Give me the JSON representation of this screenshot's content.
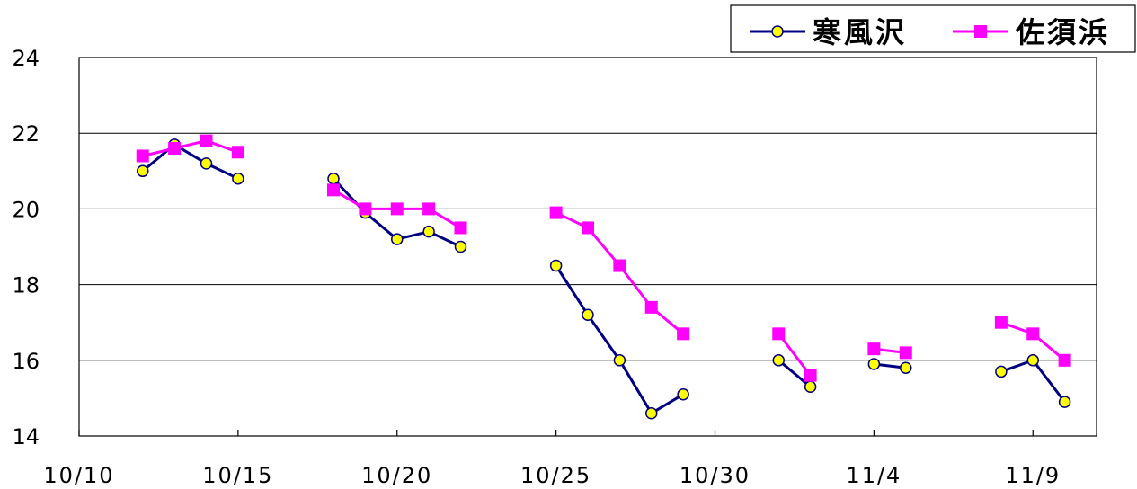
{
  "chart_data": {
    "type": "line",
    "title": "",
    "xlabel": "",
    "ylabel": "",
    "ylim": [
      14,
      24
    ],
    "yticks": [
      14,
      16,
      18,
      20,
      22,
      24
    ],
    "xlim": [
      "10/10",
      "11/11"
    ],
    "xticks": [
      {
        "date": "10/10",
        "label": "10/10"
      },
      {
        "date": "10/15",
        "label": "10/15"
      },
      {
        "date": "10/20",
        "label": "10/20"
      },
      {
        "date": "10/25",
        "label": "10/25"
      },
      {
        "date": "10/30",
        "label": "10/30"
      },
      {
        "date": "11/4",
        "label": "11/4"
      },
      {
        "date": "11/9",
        "label": "11/9"
      }
    ],
    "grid": "horizontal",
    "legend_position": "top-right",
    "series": [
      {
        "name": "寒風沢",
        "color": "#000080",
        "marker": "circle",
        "marker_fill": "#ffff00",
        "segments": [
          [
            [
              "10/12",
              21.0
            ],
            [
              "10/13",
              21.7
            ],
            [
              "10/14",
              21.2
            ],
            [
              "10/15",
              20.8
            ]
          ],
          [
            [
              "10/18",
              20.8
            ],
            [
              "10/19",
              19.9
            ],
            [
              "10/20",
              19.2
            ],
            [
              "10/21",
              19.4
            ],
            [
              "10/22",
              19.0
            ]
          ],
          [
            [
              "10/25",
              18.5
            ],
            [
              "10/26",
              17.2
            ],
            [
              "10/27",
              16.0
            ],
            [
              "10/28",
              14.6
            ],
            [
              "10/29",
              15.1
            ]
          ],
          [
            [
              "11/1",
              16.0
            ],
            [
              "11/2",
              15.3
            ]
          ],
          [
            [
              "11/4",
              15.9
            ],
            [
              "11/5",
              15.8
            ]
          ],
          [
            [
              "11/8",
              15.7
            ],
            [
              "11/9",
              16.0
            ],
            [
              "11/10",
              14.9
            ]
          ]
        ]
      },
      {
        "name": "佐須浜",
        "color": "#ff00ff",
        "marker": "square",
        "marker_fill": "#ff00ff",
        "segments": [
          [
            [
              "10/12",
              21.4
            ],
            [
              "10/13",
              21.6
            ],
            [
              "10/14",
              21.8
            ],
            [
              "10/15",
              21.5
            ]
          ],
          [
            [
              "10/18",
              20.5
            ],
            [
              "10/19",
              20.0
            ],
            [
              "10/20",
              20.0
            ],
            [
              "10/21",
              20.0
            ],
            [
              "10/22",
              19.5
            ]
          ],
          [
            [
              "10/25",
              19.9
            ],
            [
              "10/26",
              19.5
            ],
            [
              "10/27",
              18.5
            ],
            [
              "10/28",
              17.4
            ],
            [
              "10/29",
              16.7
            ]
          ],
          [
            [
              "11/1",
              16.7
            ],
            [
              "11/2",
              15.6
            ]
          ],
          [
            [
              "11/4",
              16.3
            ],
            [
              "11/5",
              16.2
            ]
          ],
          [
            [
              "11/8",
              17.0
            ],
            [
              "11/9",
              16.7
            ],
            [
              "11/10",
              16.0
            ]
          ]
        ]
      }
    ]
  }
}
